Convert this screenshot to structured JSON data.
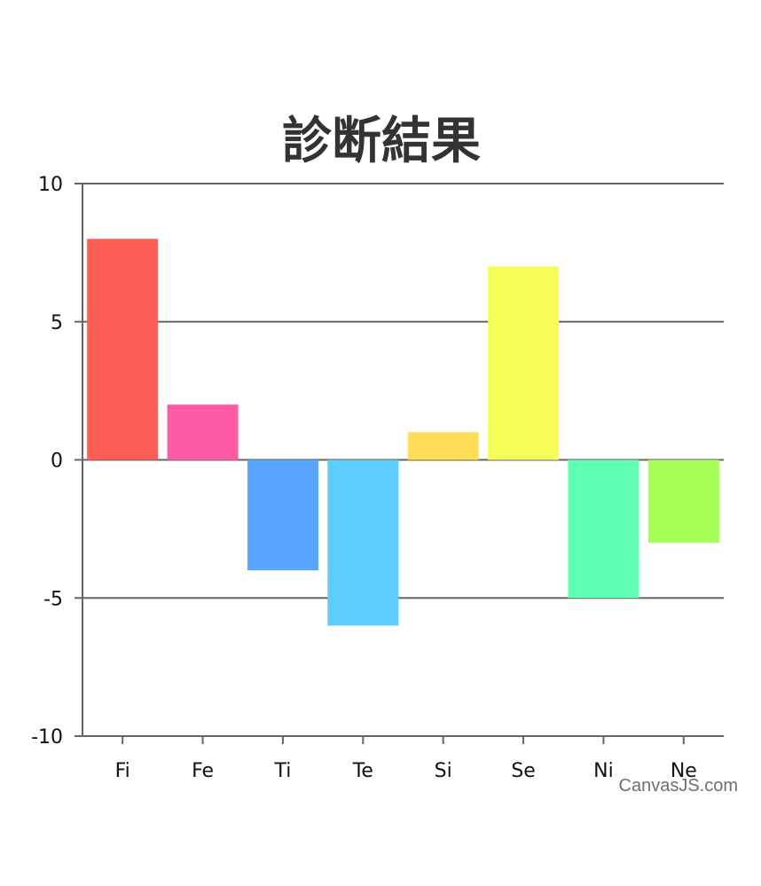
{
  "chart_data": {
    "type": "bar",
    "title": "診断結果",
    "categories": [
      "Fi",
      "Fe",
      "Ti",
      "Te",
      "Si",
      "Se",
      "Ni",
      "Ne"
    ],
    "values": [
      8,
      2,
      -4,
      -6,
      1,
      7,
      -5,
      -3
    ],
    "colors": [
      "#ff5e57",
      "#ff5aa5",
      "#57a5ff",
      "#5ccdff",
      "#ffdd57",
      "#f5ff57",
      "#5effb3",
      "#a5ff57"
    ],
    "ylim": [
      -10,
      10
    ],
    "yticks": [
      "10",
      "5",
      "0",
      "-5",
      "-10"
    ],
    "ytick_values": [
      10,
      5,
      0,
      -5,
      -10
    ],
    "grid": true
  },
  "credit": "CanvasJS.com"
}
